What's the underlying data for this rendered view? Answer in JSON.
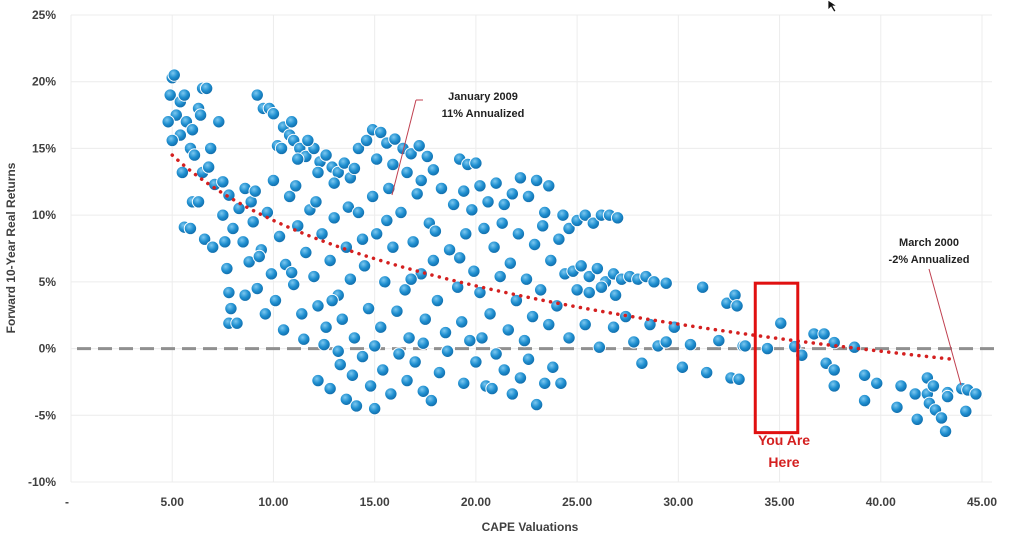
{
  "chart_data": {
    "type": "scatter",
    "xlabel": "CAPE Valuations",
    "ylabel": "Forward 10-Year Real Returns",
    "xlim": [
      0,
      45
    ],
    "ylim": [
      -10,
      25
    ],
    "x_ticks": [
      "-",
      "5.00",
      "10.00",
      "15.00",
      "20.00",
      "25.00",
      "30.00",
      "35.00",
      "40.00",
      "45.00"
    ],
    "y_ticks": [
      "-10%",
      "-5%",
      "0%",
      "5%",
      "10%",
      "15%",
      "20%",
      "25%"
    ],
    "grid": true,
    "point_color": "#1f8fd0",
    "trend": {
      "type": "logarithmic",
      "a": 25.88,
      "b": -7.07,
      "x_range": [
        5,
        43.6
      ],
      "color": "#d42020"
    },
    "zero_line_color": "#909090",
    "annotations": [
      {
        "line1": "January 2009",
        "line2": "11% Annualized",
        "x": 16,
        "y": 11
      },
      {
        "line1": "March 2000",
        "line2": "-2% Annualized",
        "x": 43.6,
        "y": -2.8
      }
    ],
    "highlight": {
      "label_line1": "You Are",
      "label_line2": "Here",
      "x_range": [
        33.8,
        35.9
      ],
      "y_range": [
        -6.3,
        4.9
      ],
      "color": "#e01010"
    },
    "points": [
      [
        5,
        20.3
      ],
      [
        5.1,
        20.5
      ],
      [
        4.9,
        19
      ],
      [
        5.4,
        18.5
      ],
      [
        5.6,
        19
      ],
      [
        5.2,
        17.5
      ],
      [
        4.8,
        17
      ],
      [
        5.7,
        17
      ],
      [
        5.4,
        16
      ],
      [
        5,
        15.6
      ],
      [
        5.9,
        15
      ],
      [
        6,
        16.4
      ],
      [
        6.3,
        18
      ],
      [
        6.5,
        19.5
      ],
      [
        6.7,
        19.5
      ],
      [
        6.4,
        17.5
      ],
      [
        6.1,
        14.5
      ],
      [
        6.5,
        13.2
      ],
      [
        6.8,
        13.6
      ],
      [
        7.1,
        12.3
      ],
      [
        5.5,
        13.2
      ],
      [
        7.3,
        17
      ],
      [
        6.9,
        15
      ],
      [
        7.5,
        12.5
      ],
      [
        7.8,
        11.5
      ],
      [
        5.6,
        9.1
      ],
      [
        5.9,
        9
      ],
      [
        6,
        11
      ],
      [
        6.3,
        11
      ],
      [
        6.6,
        8.2
      ],
      [
        7,
        7.6
      ],
      [
        7.5,
        10
      ],
      [
        7.6,
        8
      ],
      [
        7.7,
        6
      ],
      [
        7.8,
        4.2
      ],
      [
        7.9,
        3
      ],
      [
        7.8,
        1.9
      ],
      [
        8.2,
        1.9
      ],
      [
        8,
        9
      ],
      [
        8.3,
        10.5
      ],
      [
        8.6,
        12
      ],
      [
        8.9,
        11
      ],
      [
        9.2,
        19
      ],
      [
        9.5,
        18
      ],
      [
        9.8,
        18
      ],
      [
        10,
        17.6
      ],
      [
        10.2,
        15.2
      ],
      [
        10.5,
        16.6
      ],
      [
        10.8,
        16
      ],
      [
        11,
        15.6
      ],
      [
        11.3,
        15
      ],
      [
        11.6,
        14.4
      ],
      [
        12,
        15
      ],
      [
        12.3,
        14
      ],
      [
        12.6,
        14.5
      ],
      [
        12.9,
        13.6
      ],
      [
        13.2,
        13.2
      ],
      [
        13.5,
        13.9
      ],
      [
        13.8,
        12.8
      ],
      [
        14,
        13.5
      ],
      [
        10.4,
        15
      ],
      [
        11.2,
        14.2
      ],
      [
        12.2,
        13.2
      ],
      [
        13,
        12.4
      ],
      [
        10.9,
        17
      ],
      [
        11.7,
        15.6
      ],
      [
        14.2,
        15
      ],
      [
        14.6,
        15.6
      ],
      [
        14.9,
        16.4
      ],
      [
        15.3,
        16.2
      ],
      [
        15.6,
        15.4
      ],
      [
        16,
        15.7
      ],
      [
        16.4,
        15
      ],
      [
        16.8,
        14.6
      ],
      [
        17.2,
        15.2
      ],
      [
        17.6,
        14.4
      ],
      [
        17.9,
        13.4
      ],
      [
        15.1,
        14.2
      ],
      [
        15.9,
        13.8
      ],
      [
        16.6,
        13.2
      ],
      [
        17.3,
        12.6
      ],
      [
        8.5,
        8
      ],
      [
        8.8,
        6.5
      ],
      [
        9,
        9.5
      ],
      [
        9.2,
        4.5
      ],
      [
        9.4,
        7.4
      ],
      [
        9.7,
        10.2
      ],
      [
        9.9,
        5.6
      ],
      [
        10.1,
        3.6
      ],
      [
        10.3,
        8.4
      ],
      [
        10.6,
        6.3
      ],
      [
        10.8,
        11.4
      ],
      [
        11,
        4.8
      ],
      [
        11.2,
        9.2
      ],
      [
        11.4,
        2.6
      ],
      [
        11.6,
        7.2
      ],
      [
        11.8,
        10.4
      ],
      [
        12,
        5.4
      ],
      [
        12.2,
        3.2
      ],
      [
        12.4,
        8.6
      ],
      [
        12.6,
        1.6
      ],
      [
        12.8,
        6.6
      ],
      [
        13,
        9.8
      ],
      [
        13.2,
        4
      ],
      [
        13.4,
        2.2
      ],
      [
        13.6,
        7.6
      ],
      [
        13.8,
        5.2
      ],
      [
        14,
        0.8
      ],
      [
        9.6,
        2.6
      ],
      [
        10.5,
        1.4
      ],
      [
        11.5,
        0.7
      ],
      [
        12.5,
        0.3
      ],
      [
        9.1,
        11.8
      ],
      [
        10,
        12.6
      ],
      [
        11.1,
        12.2
      ],
      [
        12.1,
        11
      ],
      [
        8.6,
        4
      ],
      [
        9.3,
        6.9
      ],
      [
        10.9,
        5.7
      ],
      [
        12.9,
        3.6
      ],
      [
        13.7,
        10.6
      ],
      [
        14.2,
        10.2
      ],
      [
        14.5,
        6.2
      ],
      [
        14.7,
        3
      ],
      [
        14.9,
        11.4
      ],
      [
        15.1,
        8.6
      ],
      [
        15.3,
        1.6
      ],
      [
        15.5,
        5
      ],
      [
        15.7,
        12
      ],
      [
        15.9,
        7.6
      ],
      [
        16.1,
        2.8
      ],
      [
        16.3,
        10.2
      ],
      [
        16.5,
        4.4
      ],
      [
        16.7,
        0.8
      ],
      [
        16.9,
        8
      ],
      [
        17.1,
        11.6
      ],
      [
        17.3,
        5.6
      ],
      [
        17.5,
        2.2
      ],
      [
        17.7,
        9.4
      ],
      [
        17.9,
        6.6
      ],
      [
        18.1,
        3.6
      ],
      [
        18.3,
        12
      ],
      [
        18.5,
        1.2
      ],
      [
        18.7,
        7.4
      ],
      [
        18.9,
        10.8
      ],
      [
        19.1,
        4.6
      ],
      [
        19.3,
        2
      ],
      [
        19.5,
        8.6
      ],
      [
        19.7,
        0.6
      ],
      [
        19.9,
        5.8
      ],
      [
        14.4,
        8.2
      ],
      [
        15.6,
        9.6
      ],
      [
        16.8,
        5.2
      ],
      [
        18,
        8.8
      ],
      [
        19.2,
        6.8
      ],
      [
        17.4,
        0.4
      ],
      [
        15,
        0.2
      ],
      [
        12.2,
        -2.4
      ],
      [
        12.8,
        -3
      ],
      [
        13.3,
        -1.2
      ],
      [
        13.6,
        -3.8
      ],
      [
        13.9,
        -2
      ],
      [
        14.1,
        -4.3
      ],
      [
        14.4,
        -0.6
      ],
      [
        14.8,
        -2.8
      ],
      [
        15,
        -4.5
      ],
      [
        15.4,
        -1.6
      ],
      [
        15.8,
        -3.4
      ],
      [
        16.2,
        -0.4
      ],
      [
        16.6,
        -2.4
      ],
      [
        17,
        -1
      ],
      [
        17.4,
        -3.2
      ],
      [
        17.8,
        -3.9
      ],
      [
        18.2,
        -1.8
      ],
      [
        18.6,
        -0.2
      ],
      [
        19.4,
        -2.6
      ],
      [
        20,
        -1
      ],
      [
        20.5,
        -2.8
      ],
      [
        21,
        -0.4
      ],
      [
        21.4,
        -1.6
      ],
      [
        21.8,
        -3.4
      ],
      [
        22.2,
        -2.2
      ],
      [
        22.6,
        -0.8
      ],
      [
        23,
        -4.2
      ],
      [
        23.4,
        -2.6
      ],
      [
        23.8,
        -1.4
      ],
      [
        24.2,
        -2.6
      ],
      [
        13.2,
        -0.2
      ],
      [
        20.8,
        -3
      ],
      [
        19.2,
        14.2
      ],
      [
        19.6,
        13.8
      ],
      [
        20,
        13.9
      ],
      [
        19.4,
        11.8
      ],
      [
        19.8,
        10.4
      ],
      [
        20.2,
        12.2
      ],
      [
        20.6,
        11
      ],
      [
        21,
        12.4
      ],
      [
        21.4,
        10.8
      ],
      [
        21.8,
        11.6
      ],
      [
        22.2,
        12.8
      ],
      [
        22.6,
        11.4
      ],
      [
        23,
        12.6
      ],
      [
        23.4,
        10.2
      ],
      [
        23.6,
        12.2
      ],
      [
        20.4,
        9
      ],
      [
        20.9,
        7.6
      ],
      [
        21.3,
        9.4
      ],
      [
        21.7,
        6.4
      ],
      [
        22.1,
        8.6
      ],
      [
        22.5,
        5.2
      ],
      [
        22.9,
        7.8
      ],
      [
        23.3,
        9.2
      ],
      [
        23.7,
        6.6
      ],
      [
        24.1,
        8.2
      ],
      [
        24.3,
        10
      ],
      [
        20.2,
        4.2
      ],
      [
        20.7,
        2.6
      ],
      [
        21.2,
        5.4
      ],
      [
        21.6,
        1.4
      ],
      [
        22,
        3.6
      ],
      [
        22.4,
        0.6
      ],
      [
        22.8,
        2.4
      ],
      [
        23.2,
        4.4
      ],
      [
        23.6,
        1.8
      ],
      [
        24,
        3.2
      ],
      [
        24.4,
        5.6
      ],
      [
        20.3,
        0.8
      ],
      [
        24.6,
        9
      ],
      [
        25,
        9.6
      ],
      [
        25.4,
        10
      ],
      [
        25.8,
        9.4
      ],
      [
        26.2,
        10
      ],
      [
        26.6,
        10
      ],
      [
        27,
        9.8
      ],
      [
        24.8,
        5.8
      ],
      [
        25.2,
        6.2
      ],
      [
        25.6,
        5.4
      ],
      [
        26,
        6
      ],
      [
        26.4,
        5
      ],
      [
        26.8,
        5.6
      ],
      [
        27.2,
        5.2
      ],
      [
        27.6,
        5.4
      ],
      [
        28,
        5.2
      ],
      [
        28.4,
        5.4
      ],
      [
        28.8,
        5
      ],
      [
        29.4,
        4.9
      ],
      [
        25,
        4.4
      ],
      [
        25.6,
        4.2
      ],
      [
        26.2,
        4.6
      ],
      [
        26.9,
        4
      ],
      [
        24.6,
        0.8
      ],
      [
        25.4,
        1.8
      ],
      [
        26.1,
        0.1
      ],
      [
        26.8,
        1.6
      ],
      [
        27.4,
        2.4
      ],
      [
        27.8,
        0.5
      ],
      [
        28.2,
        -1.1
      ],
      [
        28.6,
        1.8
      ],
      [
        29,
        0.2
      ],
      [
        29.4,
        0.5
      ],
      [
        29.8,
        1.6
      ],
      [
        30.2,
        -1.4
      ],
      [
        30.6,
        0.3
      ],
      [
        31.2,
        4.6
      ],
      [
        31.4,
        -1.8
      ],
      [
        32,
        0.6
      ],
      [
        32.4,
        3.4
      ],
      [
        32.8,
        4
      ],
      [
        32.9,
        3.2
      ],
      [
        32.6,
        -2.2
      ],
      [
        33.2,
        0.2
      ],
      [
        33,
        -2.3
      ],
      [
        35.06,
        1.9
      ],
      [
        33.3,
        0.2
      ],
      [
        34.4,
        0
      ],
      [
        35.75,
        0.15
      ],
      [
        36.1,
        -0.5
      ],
      [
        36.7,
        1.1
      ],
      [
        37.2,
        1.1
      ],
      [
        37.7,
        0.45
      ],
      [
        37.3,
        -1.1
      ],
      [
        37.7,
        -1.6
      ],
      [
        37.7,
        -2.8
      ],
      [
        38.7,
        0.1
      ],
      [
        39.2,
        -2
      ],
      [
        39.2,
        -3.9
      ],
      [
        39.8,
        -2.6
      ],
      [
        40.8,
        -4.4
      ],
      [
        41,
        -2.8
      ],
      [
        41.7,
        -3.4
      ],
      [
        41.8,
        -5.3
      ],
      [
        42.3,
        -2.2
      ],
      [
        42.3,
        -3.4
      ],
      [
        42.4,
        -4.1
      ],
      [
        42.7,
        -4.6
      ],
      [
        43,
        -5.2
      ],
      [
        43.2,
        -6.2
      ],
      [
        42.6,
        -2.8
      ],
      [
        43.3,
        -3.3
      ],
      [
        43.3,
        -3.6
      ],
      [
        44,
        -3
      ],
      [
        44.3,
        -3.1
      ],
      [
        44.7,
        -3.4
      ],
      [
        44.2,
        -4.7
      ]
    ]
  }
}
